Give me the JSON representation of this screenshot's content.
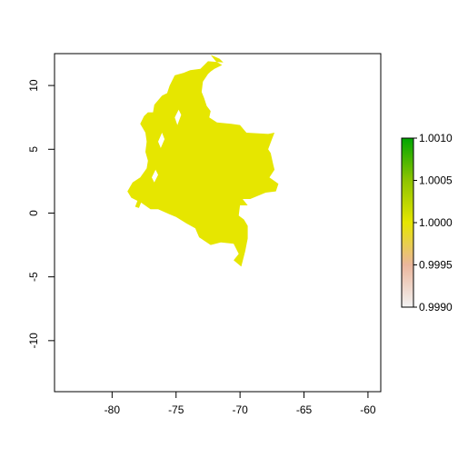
{
  "chart_data": {
    "type": "raster-map",
    "title": "",
    "xlabel": "",
    "ylabel": "",
    "xlim": [
      -84.5,
      -59
    ],
    "ylim": [
      -14,
      12.5
    ],
    "x_ticks": [
      {
        "value": -80,
        "label": "-80"
      },
      {
        "value": -75,
        "label": "-75"
      },
      {
        "value": -70,
        "label": "-70"
      },
      {
        "value": -65,
        "label": "-65"
      },
      {
        "value": -60,
        "label": "-60"
      }
    ],
    "y_ticks": [
      {
        "value": 10,
        "label": "10"
      },
      {
        "value": 5,
        "label": "5"
      },
      {
        "value": 0,
        "label": "0"
      },
      {
        "value": -5,
        "label": "-5"
      },
      {
        "value": -10,
        "label": "-10"
      }
    ],
    "raster_value": 1.0,
    "raster_color": "#e6e600",
    "legend": {
      "placement": "right",
      "min": 0.999,
      "max": 1.001,
      "colors": [
        "#f2f2f2",
        "#ebb69c",
        "#e6e600",
        "#8ec400",
        "#00a600"
      ],
      "ticks": [
        {
          "value": 1.001,
          "label": "1.0010"
        },
        {
          "value": 1.0005,
          "label": "1.0005"
        },
        {
          "value": 1.0,
          "label": "1.0000"
        },
        {
          "value": 0.9995,
          "label": "0.9995"
        },
        {
          "value": 0.999,
          "label": "0.9990"
        }
      ]
    },
    "shape": {
      "name": "colombia-raster",
      "outline": [
        [
          -71.3,
          11.8
        ],
        [
          -71.6,
          12.1
        ],
        [
          -72.3,
          12.4
        ],
        [
          -71.9,
          11.9
        ],
        [
          -71.4,
          11.6
        ],
        [
          -72.0,
          11.3
        ],
        [
          -72.3,
          11.1
        ],
        [
          -72.5,
          10.9
        ],
        [
          -72.9,
          10.3
        ],
        [
          -73.0,
          9.5
        ],
        [
          -72.8,
          9.0
        ],
        [
          -72.6,
          8.4
        ],
        [
          -72.3,
          8.0
        ],
        [
          -72.4,
          7.5
        ],
        [
          -71.8,
          7.1
        ],
        [
          -70.7,
          7.0
        ],
        [
          -70.0,
          6.9
        ],
        [
          -69.5,
          6.3
        ],
        [
          -67.8,
          6.2
        ],
        [
          -67.3,
          6.3
        ],
        [
          -67.5,
          5.8
        ],
        [
          -67.8,
          5.0
        ],
        [
          -67.6,
          4.7
        ],
        [
          -67.4,
          3.8
        ],
        [
          -67.3,
          3.4
        ],
        [
          -67.7,
          2.8
        ],
        [
          -67.0,
          2.3
        ],
        [
          -67.2,
          1.7
        ],
        [
          -68.0,
          1.6
        ],
        [
          -69.2,
          1.1
        ],
        [
          -69.8,
          1.1
        ],
        [
          -69.4,
          0.6
        ],
        [
          -70.0,
          0.6
        ],
        [
          -70.1,
          -0.2
        ],
        [
          -69.7,
          -0.5
        ],
        [
          -69.4,
          -1.0
        ],
        [
          -69.4,
          -2.0
        ],
        [
          -69.6,
          -3.0
        ],
        [
          -69.9,
          -4.2
        ],
        [
          -70.5,
          -3.7
        ],
        [
          -70.1,
          -3.2
        ],
        [
          -70.5,
          -2.4
        ],
        [
          -71.5,
          -2.3
        ],
        [
          -72.3,
          -2.5
        ],
        [
          -73.2,
          -1.9
        ],
        [
          -73.5,
          -1.2
        ],
        [
          -74.2,
          -0.8
        ],
        [
          -75.0,
          -0.3
        ],
        [
          -75.5,
          -0.1
        ],
        [
          -76.4,
          0.3
        ],
        [
          -77.0,
          0.3
        ],
        [
          -77.7,
          0.8
        ],
        [
          -78.5,
          1.2
        ],
        [
          -78.8,
          1.7
        ],
        [
          -78.4,
          2.4
        ],
        [
          -77.8,
          2.8
        ],
        [
          -77.3,
          3.5
        ],
        [
          -77.2,
          4.1
        ],
        [
          -77.4,
          4.8
        ],
        [
          -77.3,
          5.6
        ],
        [
          -77.4,
          6.3
        ],
        [
          -77.8,
          7.0
        ],
        [
          -77.5,
          7.6
        ],
        [
          -77.2,
          7.9
        ],
        [
          -76.8,
          7.9
        ],
        [
          -76.7,
          8.5
        ],
        [
          -76.1,
          9.2
        ],
        [
          -75.7,
          9.4
        ],
        [
          -75.5,
          10.0
        ],
        [
          -75.1,
          10.8
        ],
        [
          -74.4,
          11.0
        ],
        [
          -73.9,
          11.2
        ],
        [
          -73.1,
          11.3
        ],
        [
          -72.5,
          11.9
        ]
      ],
      "holes": [
        [
          [
            -75.1,
            7.5
          ],
          [
            -74.8,
            8.1
          ],
          [
            -74.6,
            7.7
          ],
          [
            -74.9,
            6.9
          ]
        ],
        [
          [
            -76.4,
            5.6
          ],
          [
            -76.1,
            6.3
          ],
          [
            -75.9,
            5.8
          ],
          [
            -76.2,
            5.1
          ]
        ],
        [
          [
            -76.9,
            2.8
          ],
          [
            -76.6,
            3.4
          ],
          [
            -76.4,
            3.0
          ],
          [
            -76.7,
            2.4
          ]
        ]
      ],
      "islands": [
        [
          [
            -78.2,
            0.5
          ],
          [
            -78.0,
            1.0
          ],
          [
            -77.7,
            0.9
          ],
          [
            -77.9,
            0.4
          ]
        ]
      ]
    }
  }
}
